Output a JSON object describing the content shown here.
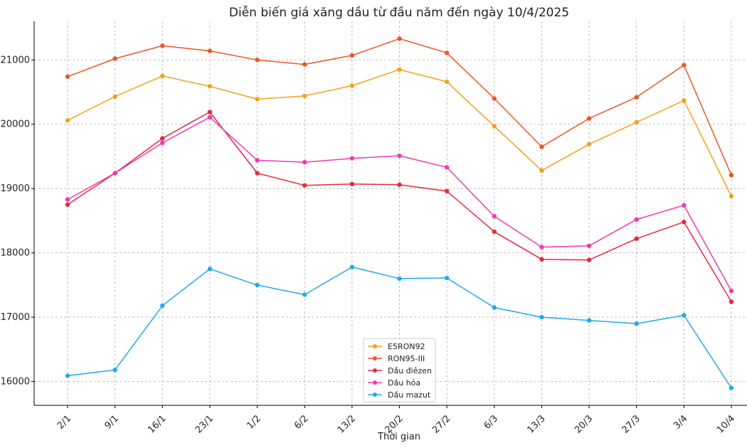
{
  "chart_data": {
    "type": "line",
    "title": "Diễn biến giá xăng dầu từ đầu năm đến ngày 10/4/2025",
    "xlabel": "Thời gian",
    "ylabel": "",
    "categories": [
      "2/1",
      "9/1",
      "16/1",
      "23/1",
      "1/2",
      "6/2",
      "13/2",
      "20/2",
      "27/2",
      "6/3",
      "13/3",
      "20/3",
      "27/3",
      "3/4",
      "10/4"
    ],
    "ylim": [
      15630,
      21600
    ],
    "yticks": [
      16000,
      17000,
      18000,
      19000,
      20000,
      21000
    ],
    "grid": true,
    "legend_position": "bottom-center",
    "series": [
      {
        "name": "E5RON92",
        "color": "#f5a11c",
        "values": [
          20060,
          20430,
          20750,
          20590,
          20390,
          20440,
          20600,
          20850,
          20660,
          19970,
          19280,
          19690,
          20030,
          20370,
          18880
        ]
      },
      {
        "name": "RON95-III",
        "color": "#ee5527",
        "values": [
          20740,
          21020,
          21220,
          21140,
          21000,
          20930,
          21070,
          21330,
          21110,
          20400,
          19650,
          20090,
          20420,
          20920,
          19210
        ]
      },
      {
        "name": "Dầu điêzen",
        "color": "#e8273f",
        "values": [
          18750,
          19240,
          19780,
          20190,
          19240,
          19050,
          19070,
          19060,
          18960,
          18330,
          17900,
          17890,
          18220,
          18480,
          17240
        ]
      },
      {
        "name": "Dầu hỏa",
        "color": "#ee3cb0",
        "values": [
          18830,
          19240,
          19710,
          20110,
          19440,
          19410,
          19470,
          19510,
          19330,
          18570,
          18090,
          18110,
          18520,
          18740,
          17410
        ]
      },
      {
        "name": "Dầu mazut",
        "color": "#22aaea",
        "values": [
          16090,
          16180,
          17180,
          17750,
          17500,
          17350,
          17780,
          17600,
          17610,
          17150,
          17000,
          16950,
          16900,
          17030,
          15900
        ]
      }
    ]
  }
}
